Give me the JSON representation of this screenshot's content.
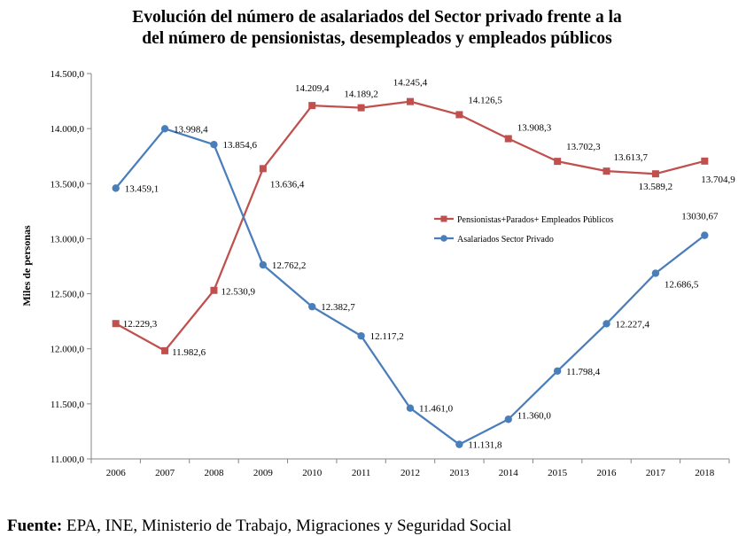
{
  "title_line1": "Evolución del número de asalariados del Sector privado frente a la",
  "title_line2": "del número de pensionistas, desempleados y empleados públicos",
  "source_label": "Fuente:",
  "source_text": "EPA, INE, Ministerio de Trabajo, Migraciones y Seguridad Social",
  "chart_data": {
    "type": "line",
    "ylabel": "Miles de personas",
    "xlabel": "",
    "ylim": [
      11000,
      14500
    ],
    "y_ticks": [
      11000,
      11500,
      12000,
      12500,
      13000,
      13500,
      14000,
      14500
    ],
    "y_tick_labels": [
      "11.000,0",
      "11.500,0",
      "12.000,0",
      "12.500,0",
      "13.000,0",
      "13.500,0",
      "14.000,0",
      "14.500,0"
    ],
    "categories": [
      "2006",
      "2007",
      "2008",
      "2009",
      "2010",
      "2011",
      "2012",
      "2013",
      "2014",
      "2015",
      "2016",
      "2017",
      "2018"
    ],
    "grid": false,
    "legend_position": "right-middle",
    "series": [
      {
        "name": "Pensionistas+Parados+ Empleados Públicos",
        "color": "#c0504d",
        "marker": "square",
        "values": [
          12229.3,
          11982.6,
          12530.9,
          13636.4,
          14209.4,
          14189.2,
          14245.4,
          14126.5,
          13908.3,
          13702.3,
          13613.7,
          13589.2,
          13704.9
        ],
        "labels": [
          "12.229,3",
          "11.982,6",
          "12.530,9",
          "13.636,4",
          "14.209,4",
          "14.189,2",
          "14.245,4",
          "14.126,5",
          "13.908,3",
          "13.702,3",
          "13.613,7",
          "13.589,2",
          "13.704,9"
        ]
      },
      {
        "name": "Asalariados Sector Privado",
        "color": "#4a7ebb",
        "marker": "circle",
        "values": [
          13459.1,
          13998.4,
          13854.6,
          12762.2,
          12382.7,
          12117.2,
          11461.0,
          11131.8,
          11360.0,
          11798.4,
          12227.4,
          12686.5,
          13030.67
        ],
        "labels": [
          "13.459,1",
          "13.998,4",
          "13.854,6",
          "12.762,2",
          "12.382,7",
          "12.117,2",
          "11.461,0",
          "11.131,8",
          "11.360,0",
          "11.798,4",
          "12.227,4",
          "12.686,5",
          "13030,67"
        ]
      }
    ]
  }
}
